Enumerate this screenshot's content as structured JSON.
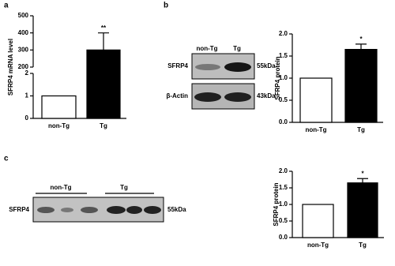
{
  "panel_labels": [
    "a",
    "b",
    "c"
  ],
  "blot_b": {
    "columns": [
      "non-Tg",
      "Tg"
    ],
    "rows": [
      {
        "label": "SFRP4",
        "size": "55kDa"
      },
      {
        "label": "β-Actin",
        "size": "43kDa"
      }
    ]
  },
  "blot_c": {
    "groups": [
      "non-Tg",
      "Tg"
    ],
    "label": "SFRP4",
    "size": "55kDa"
  },
  "chart_data": [
    {
      "type": "bar",
      "y_label": "SFRP4 mRNA level",
      "categories": [
        "non-Tg",
        "Tg"
      ],
      "values": [
        1,
        300
      ],
      "errors": [
        null,
        100
      ],
      "colors": [
        "#ffffff",
        "#000000"
      ],
      "significance": "**",
      "ylim": [
        0,
        500
      ],
      "axis_break": [
        2,
        200
      ],
      "yticks": [
        0,
        1,
        2,
        200,
        300,
        400,
        500
      ]
    },
    {
      "type": "bar",
      "y_label": "SFRP4 protein",
      "categories": [
        "non-Tg",
        "Tg"
      ],
      "values": [
        1,
        1.65
      ],
      "errors": [
        null,
        0.12
      ],
      "colors": [
        "#ffffff",
        "#000000"
      ],
      "significance": "*",
      "ylim": [
        0,
        2
      ],
      "yticks": [
        {
          "value": 0,
          "label": "0.0"
        },
        {
          "value": 0.5,
          "label": "0.5"
        },
        {
          "value": 1,
          "label": "1.0"
        },
        {
          "value": 1.5,
          "label": "1.5"
        },
        {
          "value": 2,
          "label": "2.0"
        }
      ]
    },
    {
      "type": "bar",
      "y_label": "SFRP4 protein",
      "categories": [
        "non-Tg",
        "Tg"
      ],
      "values": [
        1,
        1.65
      ],
      "errors": [
        null,
        0.13
      ],
      "colors": [
        "#ffffff",
        "#000000"
      ],
      "significance": "*",
      "ylim": [
        0,
        2
      ],
      "yticks": [
        {
          "value": 0,
          "label": "0.0"
        },
        {
          "value": 0.5,
          "label": "0.5"
        },
        {
          "value": 1,
          "label": "1.0"
        },
        {
          "value": 1.5,
          "label": "1.5"
        },
        {
          "value": 2,
          "label": "2.0"
        }
      ]
    }
  ]
}
